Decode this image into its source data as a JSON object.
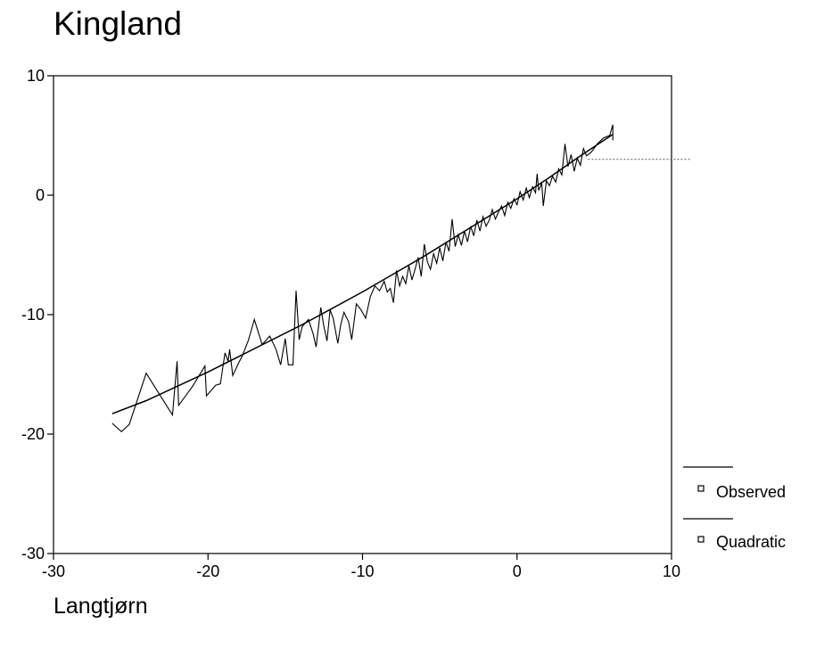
{
  "title": "Kingland",
  "subtitle": "Langtjørn",
  "chart_data": {
    "type": "line",
    "xlim": [
      -30,
      10
    ],
    "ylim": [
      -30,
      10
    ],
    "x_ticks": [
      "-30",
      "-20",
      "-10",
      "0",
      "10"
    ],
    "y_ticks": [
      "10",
      "0",
      "-10",
      "-20",
      "-30"
    ],
    "grid": false,
    "legend_placement": "bottom-right, outside plot",
    "series": [
      {
        "name": "Observed",
        "color": "#000000",
        "style": "thin jagged line",
        "points": [
          [
            -26.2,
            -19.1
          ],
          [
            -25.6,
            -19.8
          ],
          [
            -25.1,
            -19.2
          ],
          [
            -24.0,
            -14.9
          ],
          [
            -22.3,
            -18.4
          ],
          [
            -22.0,
            -13.9
          ],
          [
            -21.9,
            -17.6
          ],
          [
            -21.0,
            -16.0
          ],
          [
            -20.2,
            -14.3
          ],
          [
            -20.1,
            -16.8
          ],
          [
            -19.5,
            -15.9
          ],
          [
            -19.2,
            -15.8
          ],
          [
            -18.9,
            -13.2
          ],
          [
            -18.7,
            -13.9
          ],
          [
            -18.6,
            -12.9
          ],
          [
            -18.4,
            -15.1
          ],
          [
            -18.0,
            -14.0
          ],
          [
            -17.8,
            -13.5
          ],
          [
            -17.4,
            -12.2
          ],
          [
            -17.0,
            -10.4
          ],
          [
            -16.5,
            -12.5
          ],
          [
            -16.0,
            -11.8
          ],
          [
            -15.6,
            -12.9
          ],
          [
            -15.3,
            -14.2
          ],
          [
            -15.0,
            -12.0
          ],
          [
            -14.8,
            -14.2
          ],
          [
            -14.5,
            -14.2
          ],
          [
            -14.3,
            -8.0
          ],
          [
            -14.1,
            -12.1
          ],
          [
            -13.9,
            -11.0
          ],
          [
            -13.5,
            -10.4
          ],
          [
            -13.2,
            -11.6
          ],
          [
            -13.0,
            -12.7
          ],
          [
            -12.7,
            -9.4
          ],
          [
            -12.5,
            -11.0
          ],
          [
            -12.3,
            -12.2
          ],
          [
            -12.1,
            -9.6
          ],
          [
            -11.9,
            -10.3
          ],
          [
            -11.6,
            -12.4
          ],
          [
            -11.4,
            -10.8
          ],
          [
            -11.2,
            -9.8
          ],
          [
            -10.9,
            -10.6
          ],
          [
            -10.7,
            -12.1
          ],
          [
            -10.4,
            -9.1
          ],
          [
            -10.1,
            -9.6
          ],
          [
            -9.8,
            -10.3
          ],
          [
            -9.5,
            -8.5
          ],
          [
            -9.2,
            -7.6
          ],
          [
            -8.9,
            -8.0
          ],
          [
            -8.6,
            -7.2
          ],
          [
            -8.4,
            -8.1
          ],
          [
            -8.2,
            -7.8
          ],
          [
            -8.0,
            -9.0
          ],
          [
            -7.8,
            -6.3
          ],
          [
            -7.6,
            -7.6
          ],
          [
            -7.4,
            -6.8
          ],
          [
            -7.2,
            -7.4
          ],
          [
            -7.0,
            -5.9
          ],
          [
            -6.8,
            -7.1
          ],
          [
            -6.6,
            -6.2
          ],
          [
            -6.4,
            -5.2
          ],
          [
            -6.2,
            -6.8
          ],
          [
            -6.0,
            -4.1
          ],
          [
            -5.8,
            -5.6
          ],
          [
            -5.6,
            -6.2
          ],
          [
            -5.4,
            -4.9
          ],
          [
            -5.2,
            -5.7
          ],
          [
            -5.0,
            -4.4
          ],
          [
            -4.8,
            -5.5
          ],
          [
            -4.6,
            -3.9
          ],
          [
            -4.4,
            -4.7
          ],
          [
            -4.2,
            -2.0
          ],
          [
            -4.0,
            -4.3
          ],
          [
            -3.8,
            -3.3
          ],
          [
            -3.6,
            -4.2
          ],
          [
            -3.4,
            -3.0
          ],
          [
            -3.2,
            -3.9
          ],
          [
            -3.0,
            -2.6
          ],
          [
            -2.8,
            -3.4
          ],
          [
            -2.6,
            -2.1
          ],
          [
            -2.4,
            -3.0
          ],
          [
            -2.2,
            -1.8
          ],
          [
            -2.0,
            -2.6
          ],
          [
            -1.8,
            -2.1
          ],
          [
            -1.6,
            -1.2
          ],
          [
            -1.4,
            -2.0
          ],
          [
            -1.2,
            -1.4
          ],
          [
            -1.0,
            -0.9
          ],
          [
            -0.8,
            -1.7
          ],
          [
            -0.6,
            -0.6
          ],
          [
            -0.4,
            -1.1
          ],
          [
            -0.2,
            -0.3
          ],
          [
            0.0,
            -0.8
          ],
          [
            0.2,
            0.3
          ],
          [
            0.4,
            -0.4
          ],
          [
            0.6,
            0.6
          ],
          [
            0.8,
            -0.2
          ],
          [
            1.0,
            0.7
          ],
          [
            1.2,
            0.2
          ],
          [
            1.3,
            1.8
          ],
          [
            1.4,
            0.4
          ],
          [
            1.6,
            1.0
          ],
          [
            1.7,
            -0.9
          ],
          [
            1.9,
            1.2
          ],
          [
            2.1,
            0.8
          ],
          [
            2.3,
            1.6
          ],
          [
            2.5,
            1.1
          ],
          [
            2.7,
            2.2
          ],
          [
            2.9,
            1.7
          ],
          [
            3.1,
            4.3
          ],
          [
            3.3,
            2.4
          ],
          [
            3.5,
            3.4
          ],
          [
            3.7,
            2.0
          ],
          [
            3.9,
            3.1
          ],
          [
            4.1,
            2.5
          ],
          [
            4.3,
            3.9
          ],
          [
            4.5,
            3.3
          ],
          [
            4.8,
            3.6
          ],
          [
            5.2,
            4.3
          ],
          [
            5.6,
            4.8
          ],
          [
            6.0,
            5.0
          ],
          [
            6.2,
            5.9
          ],
          [
            6.2,
            4.6
          ]
        ]
      },
      {
        "name": "Quadratic",
        "color": "#000000",
        "style": "smooth fitted curve",
        "points": [
          [
            -26.2,
            -18.3
          ],
          [
            -24.0,
            -17.2
          ],
          [
            -22.0,
            -16.0
          ],
          [
            -20.0,
            -14.8
          ],
          [
            -18.0,
            -13.5
          ],
          [
            -16.0,
            -12.2
          ],
          [
            -14.0,
            -10.9
          ],
          [
            -12.0,
            -9.5
          ],
          [
            -10.0,
            -8.1
          ],
          [
            -8.0,
            -6.6
          ],
          [
            -6.0,
            -5.1
          ],
          [
            -4.0,
            -3.5
          ],
          [
            -2.0,
            -1.9
          ],
          [
            0.0,
            -0.3
          ],
          [
            2.0,
            1.4
          ],
          [
            4.0,
            3.2
          ],
          [
            6.2,
            5.1
          ]
        ]
      },
      {
        "name": "",
        "color": "#555555",
        "style": "dotted horizontal reference",
        "points": [
          [
            4.6,
            3.0
          ],
          [
            11.3,
            3.0
          ]
        ]
      }
    ],
    "legend": [
      "Observed",
      "Quadratic"
    ]
  }
}
